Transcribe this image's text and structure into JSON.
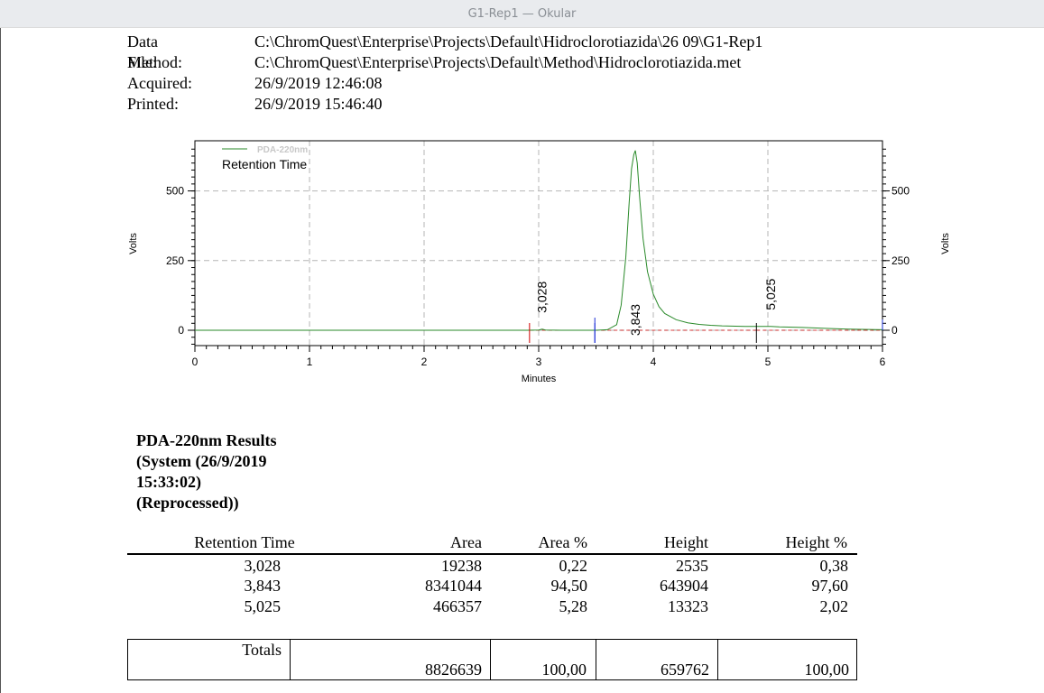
{
  "window": {
    "title": "G1-Rep1 — Okular"
  },
  "header": {
    "rows": [
      {
        "label": "Data File:",
        "value": "C:\\ChromQuest\\Enterprise\\Projects\\Default\\Hidroclorotiazida\\26 09\\G1-Rep1"
      },
      {
        "label": "Method:",
        "value": "C:\\ChromQuest\\Enterprise\\Projects\\Default\\Method\\Hidroclorotiazida.met"
      },
      {
        "label": "Acquired:",
        "value": "26/9/2019 12:46:08"
      },
      {
        "label": "Printed:",
        "value": "26/9/2019 15:46:40"
      }
    ]
  },
  "chart_data": {
    "type": "line",
    "xlabel": "Minutes",
    "ylabel": "Volts",
    "ylabel_right": "Volts",
    "xlim": [
      0,
      6
    ],
    "ylim": [
      -55,
      680
    ],
    "x_ticks": [
      "0",
      "1",
      "2",
      "3",
      "4",
      "5",
      "6"
    ],
    "y_ticks": [
      "0",
      "250",
      "500"
    ],
    "y_ticks_right": [
      "0",
      "250",
      "500"
    ],
    "grid": true,
    "legend": {
      "position": "top-left",
      "series_name": "PDA-220nm",
      "sublabel": "Retention Time"
    },
    "series": [
      {
        "name": "PDA-220nm",
        "color": "#2a8a2a",
        "x": [
          0,
          2.9,
          3.0,
          3.03,
          3.06,
          3.2,
          3.5,
          3.6,
          3.68,
          3.72,
          3.76,
          3.79,
          3.81,
          3.83,
          3.843,
          3.86,
          3.88,
          3.91,
          3.95,
          4.0,
          4.05,
          4.1,
          4.2,
          4.3,
          4.4,
          4.5,
          4.6,
          4.8,
          4.95,
          5.025,
          5.1,
          5.3,
          5.5,
          5.7,
          6.0
        ],
        "y": [
          0,
          0,
          1,
          4,
          1,
          0,
          0,
          2,
          20,
          90,
          260,
          460,
          580,
          630,
          645,
          600,
          480,
          330,
          210,
          130,
          85,
          60,
          38,
          27,
          21,
          18,
          16,
          14,
          14,
          14,
          12,
          10,
          7,
          4,
          2
        ]
      }
    ],
    "peaks": [
      {
        "label": "3,028",
        "x": 3.028,
        "y": 4,
        "start": 2.92,
        "end": 3.49
      },
      {
        "label": "3,843",
        "x": 3.843,
        "y": 645,
        "start": 3.49,
        "end": 4.9
      },
      {
        "label": "5,025",
        "x": 5.025,
        "y": 14,
        "start": 4.9,
        "end": 6.0
      }
    ]
  },
  "results": {
    "title": "PDA-220nm Results (System (26/9/2019 15:33:02) (Reprocessed))",
    "columns": [
      "Retention Time",
      "Area",
      "Area %",
      "Height",
      "Height %"
    ],
    "rows": [
      [
        "3,028",
        "19238",
        "0,22",
        "2535",
        "0,38"
      ],
      [
        "3,843",
        "8341044",
        "94,50",
        "643904",
        "97,60"
      ],
      [
        "5,025",
        "466357",
        "5,28",
        "13323",
        "2,02"
      ]
    ],
    "totals": {
      "label": "Totals",
      "area": "8826639",
      "area_pct": "100,00",
      "height": "659762",
      "height_pct": "100,00"
    }
  }
}
